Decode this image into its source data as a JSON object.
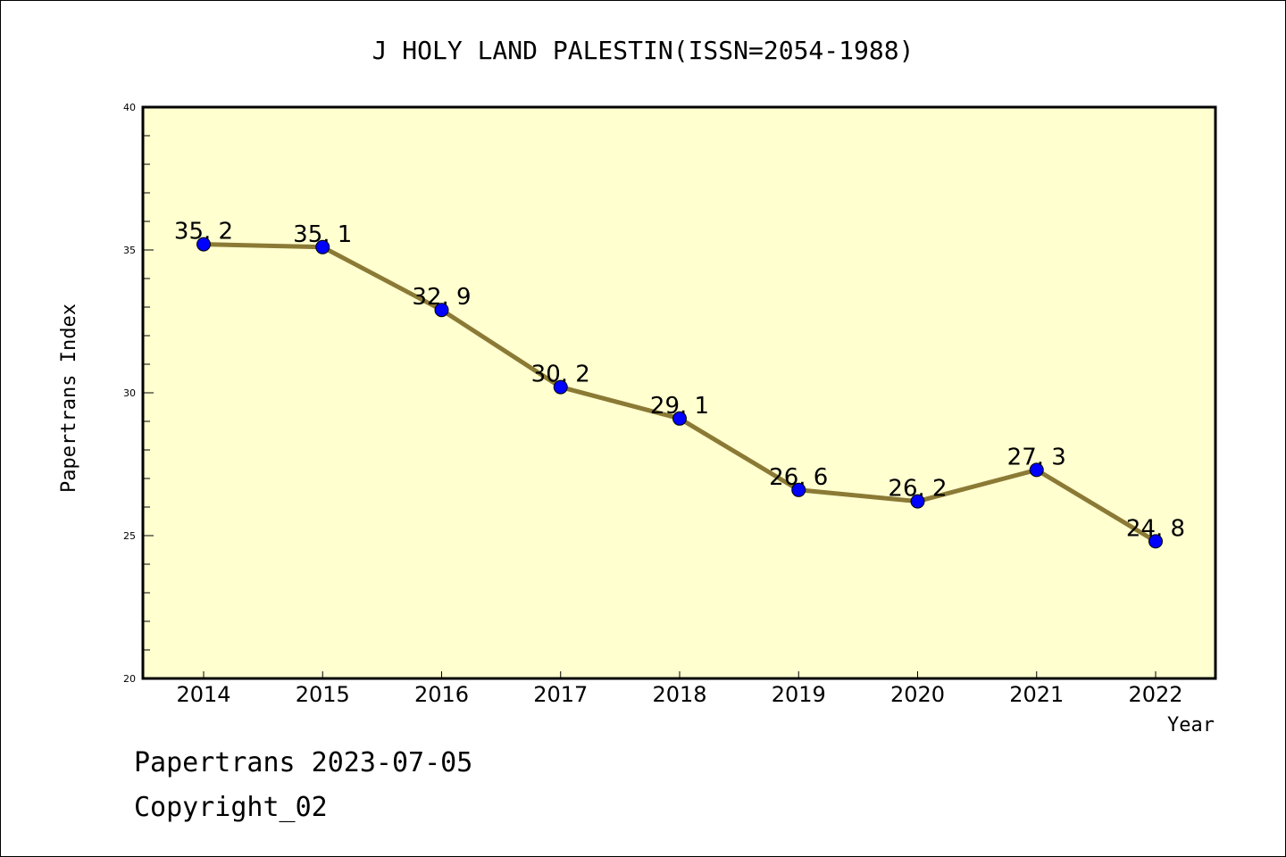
{
  "chart_data": {
    "type": "line",
    "title": "J HOLY LAND PALESTIN(ISSN=2054-1988)",
    "xlabel": "Year",
    "ylabel": "Papertrans Index",
    "categories": [
      "2014",
      "2015",
      "2016",
      "2017",
      "2018",
      "2019",
      "2020",
      "2021",
      "2022"
    ],
    "series": [
      {
        "name": "Papertrans Index",
        "values": [
          35.2,
          35.1,
          32.9,
          30.2,
          29.1,
          26.6,
          26.2,
          27.3,
          24.8
        ],
        "labels": [
          "35.2",
          "35.1",
          "32.9",
          "30.2",
          "29.1",
          "26.6",
          "26.2",
          "27.3",
          "24.8"
        ],
        "line_color": "#8b7a35",
        "marker_color": "#0000ff"
      }
    ],
    "ylim": [
      20,
      40
    ],
    "yticks": [
      "20",
      "25",
      "30",
      "35",
      "40"
    ],
    "y_minor_step": 1,
    "grid": false,
    "legend": "none",
    "plot_background": "#ffffd0"
  },
  "footer": {
    "source_line": "Papertrans 2023-07-05",
    "copyright": "Copyright_02"
  }
}
